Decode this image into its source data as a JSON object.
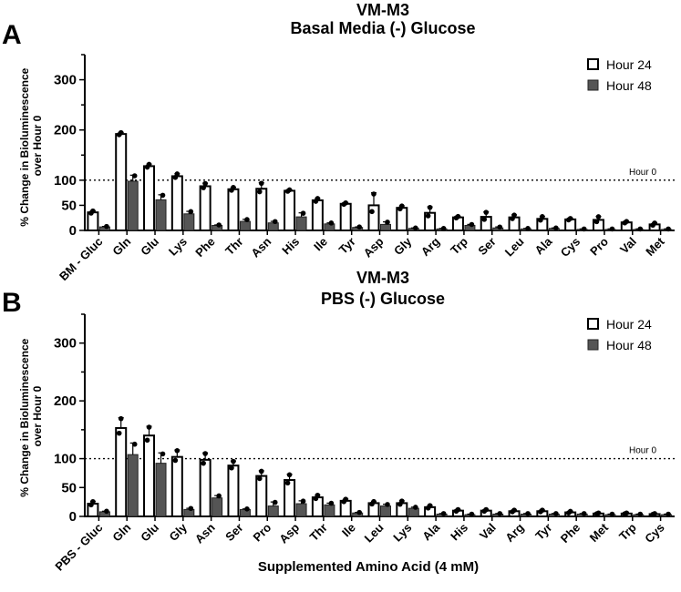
{
  "chart_data": [
    {
      "type": "bar",
      "panel_letter": "A",
      "title": "VM-M3",
      "subtitle": "Basal Media (-) Glucose",
      "ylabel": "% Change in Bioluminescence over Hour 0",
      "xlabel": "",
      "yticks": [
        0,
        50,
        100,
        200,
        300
      ],
      "ylim": [
        0,
        350
      ],
      "reference_line": {
        "value": 100,
        "label": "Hour 0"
      },
      "legend_position": "top-right",
      "colors": {
        "Hour 24": "#ffffff",
        "Hour 48": "#555555"
      },
      "categories": [
        "BM - Gluc",
        "Gln",
        "Glu",
        "Lys",
        "Phe",
        "Thr",
        "Asn",
        "His",
        "Ile",
        "Tyr",
        "Asp",
        "Gly",
        "Arg",
        "Trp",
        "Ser",
        "Leu",
        "Ala",
        "Cys",
        "Pro",
        "Val",
        "Met"
      ],
      "series": [
        {
          "name": "Hour 24",
          "values": [
            36,
            192,
            128,
            108,
            88,
            82,
            83,
            79,
            60,
            53,
            50,
            45,
            35,
            26,
            27,
            26,
            23,
            22,
            21,
            16,
            12
          ],
          "errors": [
            3,
            3,
            4,
            5,
            6,
            4,
            12,
            2,
            4,
            2,
            25,
            4,
            12,
            2,
            10,
            5,
            5,
            2,
            7,
            2,
            3
          ]
        },
        {
          "name": "Hour 48",
          "values": [
            7,
            98,
            61,
            33,
            10,
            18,
            15,
            27,
            13,
            6,
            12,
            4,
            3,
            10,
            5,
            3,
            4,
            2,
            2,
            2,
            2
          ],
          "errors": [
            1,
            12,
            10,
            5,
            1,
            4,
            3,
            8,
            2,
            1,
            5,
            1,
            1,
            2,
            2,
            1,
            1,
            1,
            1,
            1,
            1
          ]
        }
      ]
    },
    {
      "type": "bar",
      "panel_letter": "B",
      "title": "VM-M3",
      "subtitle": "PBS (-) Glucose",
      "ylabel": "% Change in Bioluminescence over Hour 0",
      "xlabel": "Supplemented Amino Acid (4 mM)",
      "yticks": [
        0,
        50,
        100,
        200,
        300
      ],
      "ylim": [
        0,
        350
      ],
      "reference_line": {
        "value": 100,
        "label": "Hour 0"
      },
      "legend_position": "top-right",
      "colors": {
        "Hour 24": "#ffffff",
        "Hour 48": "#555555"
      },
      "categories": [
        "PBS - Gluc",
        "Gln",
        "Glu",
        "Gly",
        "Asn",
        "Ser",
        "Pro",
        "Asp",
        "Thr",
        "Ile",
        "Leu",
        "Lys",
        "Ala",
        "His",
        "Val",
        "Arg",
        "Tyr",
        "Phe",
        "Met",
        "Trp",
        "Cys"
      ],
      "series": [
        {
          "name": "Hour 24",
          "values": [
            22,
            153,
            140,
            103,
            98,
            88,
            70,
            63,
            33,
            27,
            23,
            23,
            16,
            10,
            10,
            9,
            9,
            7,
            5,
            5,
            4
          ],
          "errors": [
            4,
            18,
            16,
            12,
            12,
            8,
            9,
            10,
            4,
            3,
            3,
            4,
            3,
            2,
            2,
            2,
            2,
            2,
            1,
            1,
            1
          ]
        },
        {
          "name": "Hour 48",
          "values": [
            8,
            107,
            92,
            12,
            32,
            12,
            18,
            22,
            20,
            6,
            18,
            14,
            4,
            3,
            4,
            4,
            4,
            4,
            3,
            3,
            3
          ],
          "errors": [
            1,
            20,
            18,
            2,
            4,
            1,
            7,
            5,
            3,
            1,
            3,
            2,
            1,
            1,
            1,
            1,
            1,
            1,
            1,
            1,
            1
          ]
        }
      ]
    }
  ]
}
